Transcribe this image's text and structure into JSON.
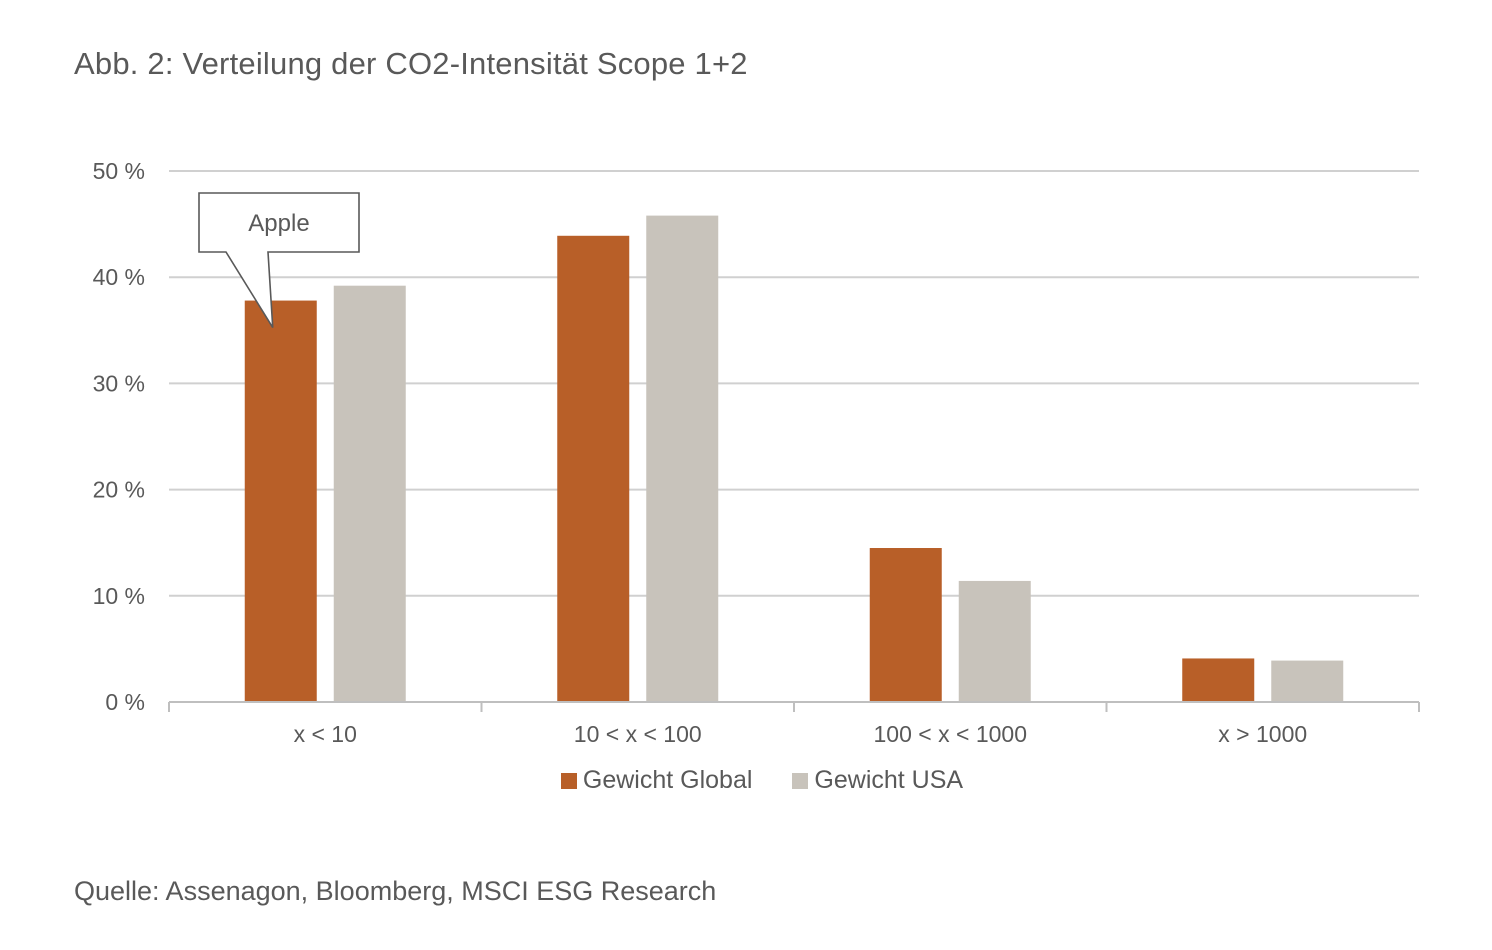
{
  "title": "Abb. 2: Verteilung der CO2-Intensität Scope 1+2",
  "source": "Quelle: Assenagon, Bloomberg, MSCI ESG Research",
  "colors": {
    "global": "#b85f28",
    "usa": "#c8c3bb",
    "grid": "#d0d0d0",
    "axis": "#bfbfbf",
    "text": "#595959"
  },
  "chart_data": {
    "type": "bar",
    "title": "Abb. 2: Verteilung der CO2-Intensität Scope 1+2",
    "xlabel": "",
    "ylabel": "",
    "categories": [
      "x < 10",
      "10 < x < 100",
      "100 < x < 1000",
      "x > 1000"
    ],
    "series": [
      {
        "name": "Gewicht Global",
        "color": "#b85f28",
        "values": [
          37.8,
          43.9,
          14.5,
          4.1
        ]
      },
      {
        "name": "Gewicht USA",
        "color": "#c8c3bb",
        "values": [
          39.2,
          45.8,
          11.4,
          3.9
        ]
      }
    ],
    "ylim": [
      0,
      50
    ],
    "yticks": [
      0,
      10,
      20,
      30,
      40,
      50
    ],
    "ytick_labels": [
      "0 %",
      "10 %",
      "20 %",
      "30 %",
      "40 %",
      "50 %"
    ],
    "grid": true,
    "legend_position": "bottom",
    "annotations": [
      {
        "text": "Apple",
        "category": "x < 10",
        "series": "Gewicht Global"
      }
    ]
  }
}
